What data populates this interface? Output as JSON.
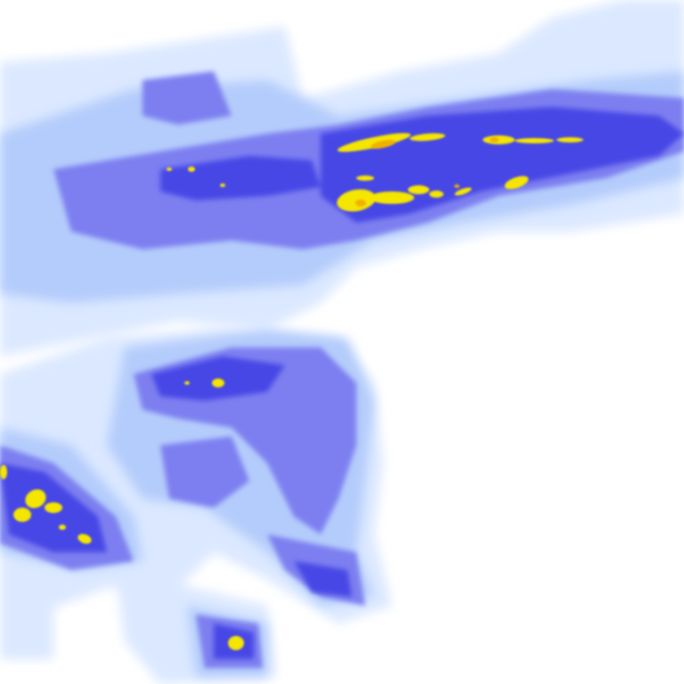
{
  "map": {
    "kind": "precipitation-radar-tile",
    "colors": {
      "background": "#ffffff",
      "very_light": "#dbe8ff",
      "light": "#b4ccfb",
      "medium": "#7d7ff0",
      "heavy": "#4646e6",
      "intense": "#f5e600",
      "extreme": "#f0b000"
    }
  }
}
